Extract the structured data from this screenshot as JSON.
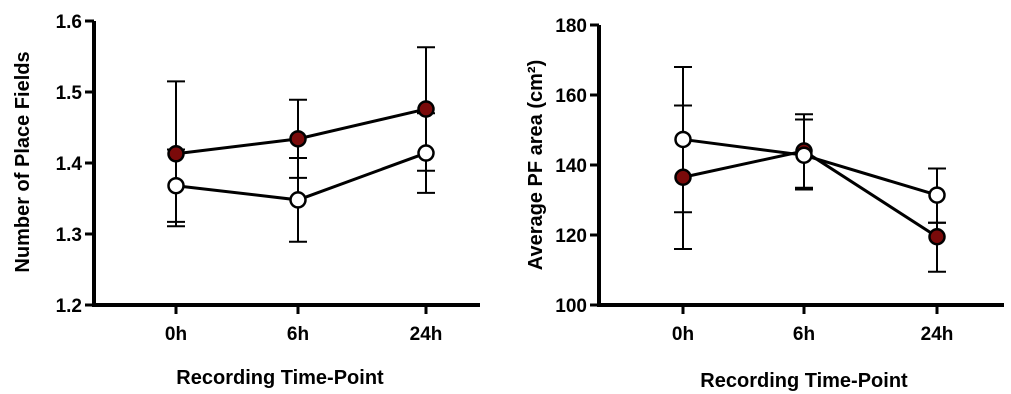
{
  "chart_data": [
    {
      "type": "line",
      "categories": [
        "0h",
        "6h",
        "24h"
      ],
      "xlabel": "Recording Time-Point",
      "ylabel": "Number of Place Fields",
      "ylim": [
        1.2,
        1.6
      ],
      "yticks": [
        "1.2",
        "1.3",
        "1.4",
        "1.5",
        "1.6"
      ],
      "grid": false,
      "series": [
        {
          "color": "#7a0a0a",
          "fill": "filled",
          "values": [
            1.413,
            1.434,
            1.476
          ],
          "err_upper": [
            1.515,
            1.489,
            1.563
          ],
          "err_lower": [
            1.311,
            1.379,
            1.389
          ]
        },
        {
          "color": "#ffffff",
          "fill": "open",
          "values": [
            1.368,
            1.348,
            1.414
          ],
          "err_upper": [
            1.419,
            1.407,
            1.47
          ],
          "err_lower": [
            1.317,
            1.289,
            1.358
          ]
        }
      ]
    },
    {
      "type": "line",
      "categories": [
        "0h",
        "6h",
        "24h"
      ],
      "xlabel": "Recording Time-Point",
      "ylabel": "Average PF area (cm²)",
      "ylim": [
        100,
        180
      ],
      "yticks": [
        "100",
        "120",
        "140",
        "160",
        "180"
      ],
      "grid": false,
      "series": [
        {
          "color": "#7a0a0a",
          "fill": "filled",
          "values": [
            136.5,
            144,
            119.5
          ],
          "err_upper": [
            157,
            154.5,
            123.5
          ],
          "err_lower": [
            116,
            133.5,
            109.5
          ]
        },
        {
          "color": "#ffffff",
          "fill": "open",
          "values": [
            147.3,
            142.8,
            131.4
          ],
          "err_upper": [
            168,
            153,
            139
          ],
          "err_lower": [
            126.5,
            133,
            123.5
          ]
        }
      ]
    }
  ]
}
